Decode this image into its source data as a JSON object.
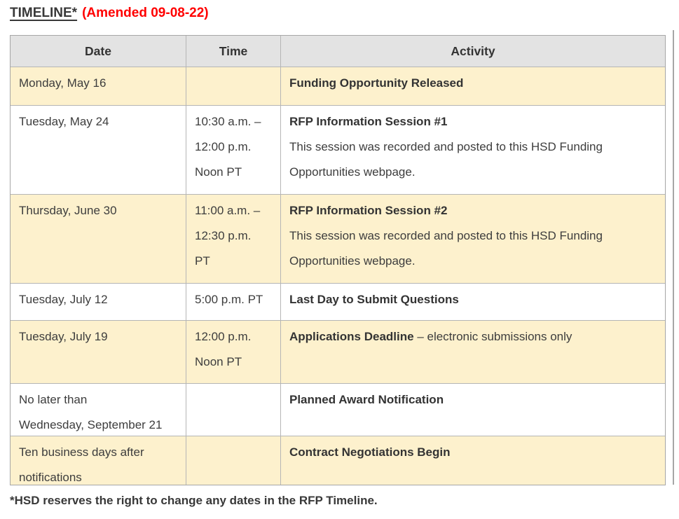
{
  "page": {
    "title": "TIMELINE*",
    "title_amendment": "(Amended 09-08-22)",
    "footnote": "*HSD reserves the right to change any dates in the RFP Timeline."
  },
  "colors": {
    "amendment_red": "#ff0000",
    "shaded_row_bg": "#fdf1cd",
    "header_bg": "#e3e3e3",
    "table_border": "#a6a6a6",
    "body_text": "#3d3d3d"
  },
  "table": {
    "headers": [
      "Date",
      "Time",
      "Activity"
    ],
    "rows": [
      {
        "shaded": true,
        "date_lines": [
          "Monday, May 16"
        ],
        "time_lines": [],
        "activity_title": "Funding Opportunity Released",
        "activity_title_suffix": "",
        "activity_lines": []
      },
      {
        "shaded": false,
        "date_lines": [
          "Tuesday, May 24"
        ],
        "time_lines": [
          "10:30 a.m. –",
          "12:00 p.m.",
          "Noon PT"
        ],
        "activity_title": "RFP Information Session #1",
        "activity_title_suffix": "",
        "activity_lines": [
          "This session was recorded and posted to this HSD Funding",
          "Opportunities webpage."
        ]
      },
      {
        "shaded": true,
        "date_lines": [
          "Thursday, June 30"
        ],
        "time_lines": [
          "11:00 a.m. –",
          "12:30 p.m.",
          "PT"
        ],
        "activity_title": "RFP Information Session #2",
        "activity_title_suffix": "",
        "activity_lines": [
          "This session was recorded and posted to this HSD Funding",
          "Opportunities webpage."
        ]
      },
      {
        "shaded": false,
        "date_lines": [
          "Tuesday, July 12"
        ],
        "time_lines": [
          "5:00 p.m. PT"
        ],
        "activity_title": "Last Day to Submit Questions",
        "activity_title_suffix": "",
        "activity_lines": []
      },
      {
        "shaded": true,
        "date_lines": [
          "Tuesday, July 19"
        ],
        "time_lines": [
          "12:00 p.m.",
          "Noon PT"
        ],
        "activity_title": "Applications Deadline",
        "activity_title_suffix": " – electronic submissions only",
        "activity_lines": []
      },
      {
        "shaded": false,
        "date_lines": [
          "No later than",
          "Wednesday, September 21"
        ],
        "time_lines": [],
        "activity_title": "Planned Award Notification",
        "activity_title_suffix": "",
        "activity_lines": []
      },
      {
        "shaded": true,
        "date_lines": [
          "Ten business days after",
          "notifications"
        ],
        "time_lines": [],
        "activity_title": "Contract Negotiations Begin",
        "activity_title_suffix": "",
        "activity_lines": []
      }
    ]
  }
}
